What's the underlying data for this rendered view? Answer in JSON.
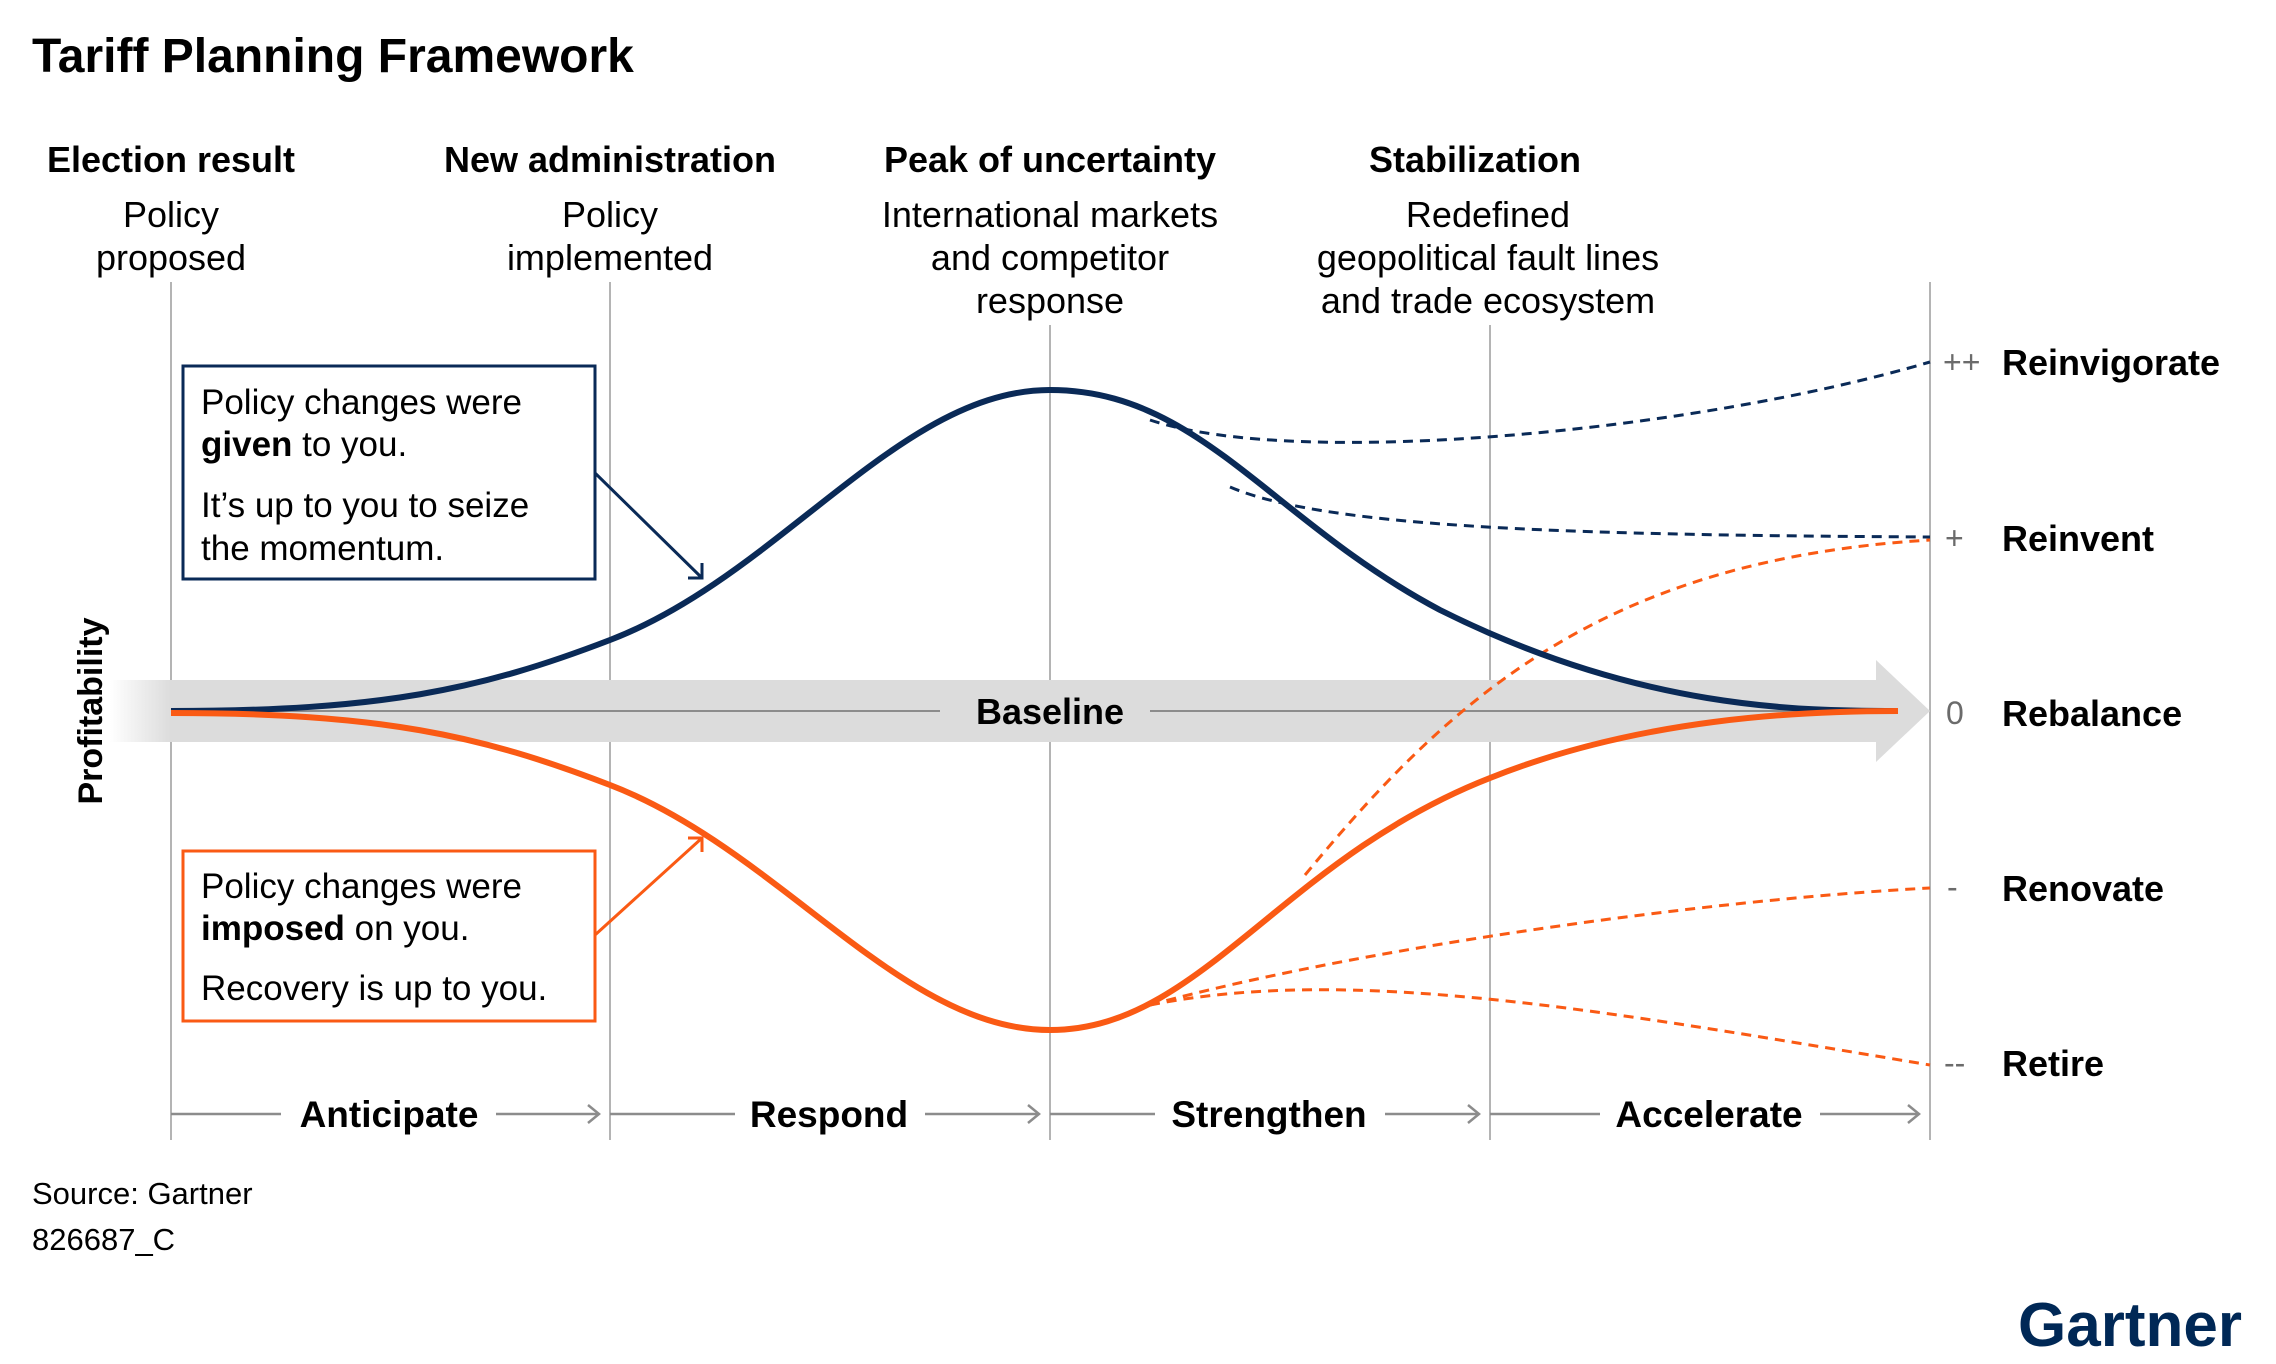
{
  "title": "Tariff Planning Framework",
  "y_axis_label": "Profitability",
  "baseline_label": "Baseline",
  "phases": [
    {
      "heading": "Election result",
      "lines": [
        "Policy",
        "proposed"
      ]
    },
    {
      "heading": "New administration",
      "lines": [
        "Policy",
        "implemented"
      ]
    },
    {
      "heading": "Peak of uncertainty",
      "lines": [
        "International markets",
        "and competitor",
        "response"
      ]
    },
    {
      "heading": "Stabilization",
      "lines": [
        "Redefined",
        "geopolitical fault lines",
        "and trade ecosystem"
      ]
    }
  ],
  "callout_top": {
    "line1": "Policy changes were",
    "line2_bold": "given",
    "line2_rest": " to you.",
    "line3": "It’s up to you to seize",
    "line4": "the momentum."
  },
  "callout_bottom": {
    "line1": "Policy changes were",
    "line2_bold": "imposed",
    "line2_rest": " on you.",
    "line3": "Recovery is up to you."
  },
  "stages": [
    "Anticipate",
    "Respond",
    "Strengthen",
    "Accelerate"
  ],
  "outcomes": [
    {
      "symbol": "++",
      "label": "Reinvigorate"
    },
    {
      "symbol": "+",
      "label": "Reinvent"
    },
    {
      "symbol": "0",
      "label": "Rebalance"
    },
    {
      "symbol": "-",
      "label": "Renovate"
    },
    {
      "symbol": "--",
      "label": "Retire"
    }
  ],
  "footer": {
    "source": "Source: Gartner",
    "code": "826687_C"
  },
  "logo": "Gartner",
  "colors": {
    "navy": "#0a2a57",
    "orange": "#fa5a14",
    "baseline_arrow": "#dcdcdc",
    "grid": "#b4b4b4",
    "logo": "#002856"
  }
}
